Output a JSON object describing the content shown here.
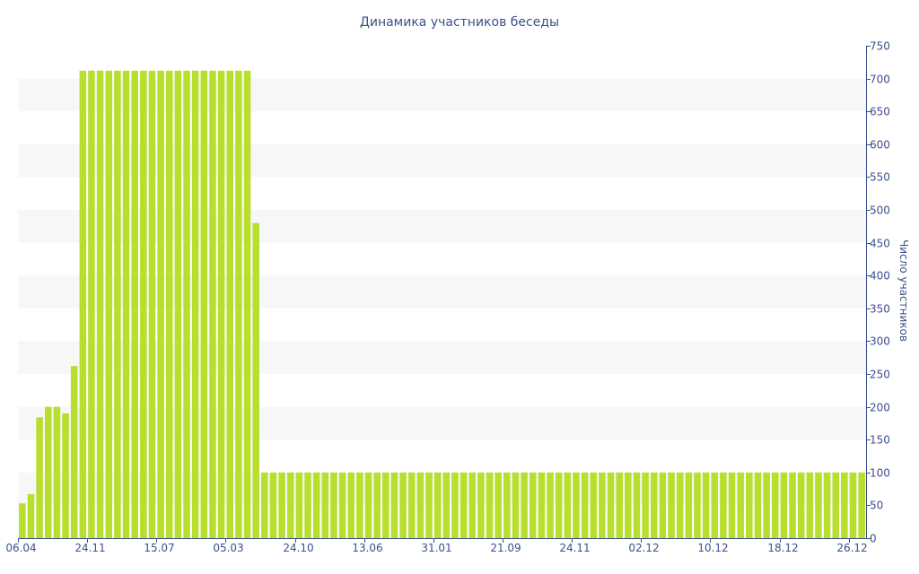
{
  "chart_data": {
    "type": "bar",
    "title": "Динамика участников беседы",
    "ylabel": "Число участников",
    "xlabel": "",
    "ylim": [
      0,
      750
    ],
    "y_ticks": [
      0,
      50,
      100,
      150,
      200,
      250,
      300,
      350,
      400,
      450,
      500,
      550,
      600,
      650,
      700,
      750
    ],
    "x_tick_labels": [
      "06.04",
      "24.11",
      "15.07",
      "05.03",
      "24.10",
      "13.06",
      "31.01",
      "21.09",
      "24.11",
      "02.12",
      "10.12",
      "18.12",
      "26.12"
    ],
    "x_tick_label_bar_index": [
      0,
      8,
      16,
      24,
      32,
      40,
      48,
      56,
      64,
      72,
      80,
      88,
      96
    ],
    "grid": "alternating horizontal bands",
    "y_axis_side": "right",
    "bar_color": "#b8de2e",
    "band_color": "#f7f7f7",
    "text_color": "#3d4f8a",
    "axis_color": "#3d4f8a",
    "values": [
      53,
      67,
      184,
      200,
      200,
      190,
      262,
      712,
      712,
      712,
      712,
      712,
      712,
      712,
      712,
      712,
      712,
      712,
      712,
      712,
      712,
      712,
      712,
      712,
      712,
      712,
      712,
      480,
      100,
      100,
      100,
      100,
      100,
      100,
      100,
      100,
      100,
      100,
      100,
      100,
      100,
      100,
      100,
      100,
      100,
      100,
      100,
      100,
      100,
      100,
      100,
      100,
      100,
      100,
      100,
      100,
      100,
      100,
      100,
      100,
      100,
      100,
      100,
      100,
      100,
      100,
      100,
      100,
      100,
      100,
      100,
      100,
      100,
      100,
      100,
      100,
      100,
      100,
      100,
      100,
      100,
      100,
      100,
      100,
      100,
      100,
      100,
      100,
      100,
      100,
      100,
      100,
      100,
      100,
      100,
      100,
      100,
      100
    ]
  }
}
